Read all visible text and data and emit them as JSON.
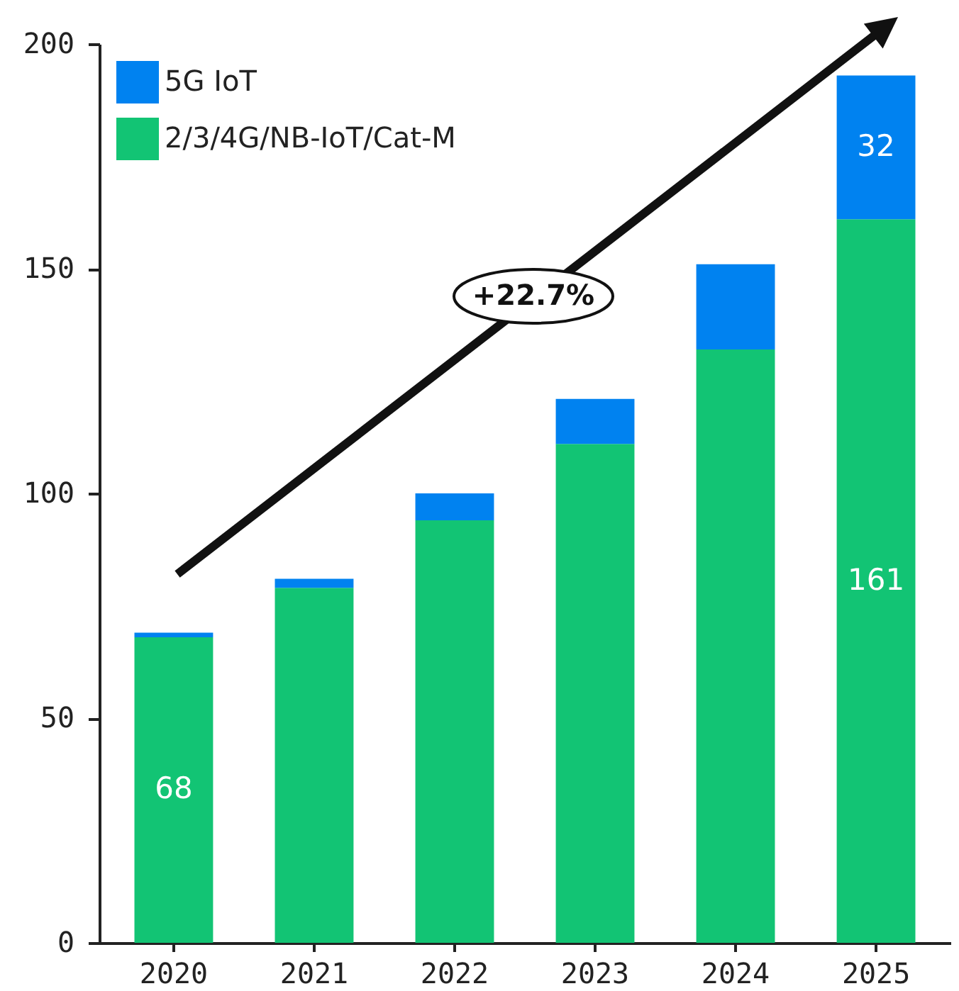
{
  "chart_data": {
    "type": "bar",
    "stacked": true,
    "categories": [
      "2020",
      "2021",
      "2022",
      "2023",
      "2024",
      "2025"
    ],
    "series": [
      {
        "name": "2/3/4G/NB-IoT/Cat-M",
        "color": "#12c474",
        "values": [
          68,
          79,
          94,
          111,
          132,
          161
        ],
        "value_labels": [
          "68",
          null,
          null,
          null,
          null,
          "161"
        ]
      },
      {
        "name": "5G IoT",
        "color": "#0082f0",
        "values": [
          1,
          2,
          6,
          10,
          19,
          32
        ],
        "value_labels": [
          null,
          null,
          null,
          null,
          null,
          "32"
        ]
      }
    ],
    "ylim": [
      0,
      200
    ],
    "yticks": [
      0,
      50,
      100,
      150,
      200
    ],
    "grid": false,
    "legend": "top left",
    "annotations": [
      "+22.7%"
    ]
  }
}
